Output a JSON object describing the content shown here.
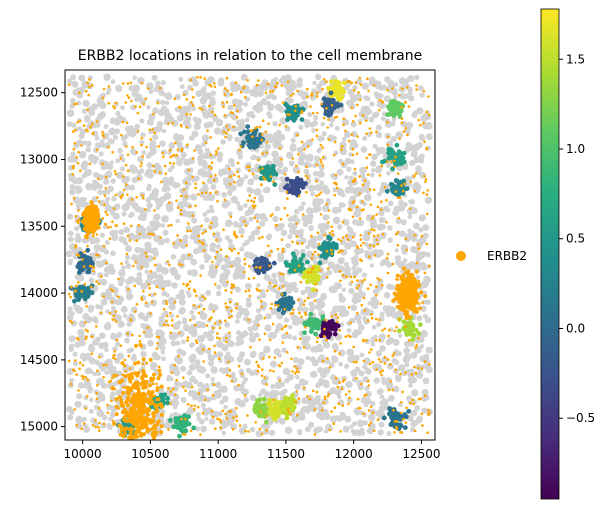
{
  "chart_data": {
    "type": "scatter",
    "title": "ERBB2 locations in relation to the cell membrane",
    "xlabel": "",
    "ylabel": "",
    "xlim": [
      9870,
      12600
    ],
    "ylim": [
      15100,
      12330
    ],
    "y_inverted": true,
    "xticks": [
      10000,
      10500,
      11000,
      11500,
      12000,
      12500
    ],
    "yticks": [
      12500,
      13000,
      13500,
      14000,
      14500,
      15000
    ],
    "colorbar": {
      "colormap": "viridis",
      "range": [
        -0.95,
        1.78
      ],
      "ticks": [
        -0.5,
        0.0,
        0.5,
        1.0,
        1.5
      ],
      "tick_labels": [
        "−0.5",
        "0.0",
        "0.5",
        "1.0",
        "1.5"
      ]
    },
    "legend": {
      "label": "ERBB2",
      "color": "#ffa500",
      "placement": "right"
    },
    "series": [
      {
        "name": "cell membranes",
        "color": "#d3d3d3",
        "extent_x": [
          9900,
          12560
        ],
        "extent_y": [
          12380,
          15060
        ]
      },
      {
        "name": "ERBB2",
        "color": "#ffa500"
      }
    ],
    "highlighted_cells": [
      {
        "x": 11250,
        "y": 12850,
        "v": 0.1
      },
      {
        "x": 11370,
        "y": 13100,
        "v": 0.5
      },
      {
        "x": 11570,
        "y": 13200,
        "v": -0.3
      },
      {
        "x": 11810,
        "y": 13660,
        "v": 0.4
      },
      {
        "x": 11330,
        "y": 13790,
        "v": -0.2
      },
      {
        "x": 11560,
        "y": 13800,
        "v": 0.6
      },
      {
        "x": 11500,
        "y": 14080,
        "v": 0.1
      },
      {
        "x": 11690,
        "y": 13860,
        "v": 1.6
      },
      {
        "x": 11700,
        "y": 14230,
        "v": 0.9
      },
      {
        "x": 11820,
        "y": 14260,
        "v": -0.9
      },
      {
        "x": 11880,
        "y": 12480,
        "v": 1.7
      },
      {
        "x": 11830,
        "y": 12600,
        "v": -0.1
      },
      {
        "x": 12310,
        "y": 12620,
        "v": 1.1
      },
      {
        "x": 12300,
        "y": 12990,
        "v": 0.6
      },
      {
        "x": 12320,
        "y": 13220,
        "v": 0.3
      },
      {
        "x": 10050,
        "y": 13480,
        "v": 0.3
      },
      {
        "x": 10020,
        "y": 13780,
        "v": 0.0
      },
      {
        "x": 10000,
        "y": 13990,
        "v": 0.2
      },
      {
        "x": 11330,
        "y": 14880,
        "v": 1.3
      },
      {
        "x": 11430,
        "y": 14860,
        "v": 1.6
      },
      {
        "x": 11520,
        "y": 14830,
        "v": 1.5
      },
      {
        "x": 10560,
        "y": 14810,
        "v": 0.6
      },
      {
        "x": 10340,
        "y": 15000,
        "v": 0.5
      },
      {
        "x": 10730,
        "y": 14990,
        "v": 0.8
      },
      {
        "x": 12310,
        "y": 14940,
        "v": 0.1
      },
      {
        "x": 11560,
        "y": 12640,
        "v": 0.4
      },
      {
        "x": 12410,
        "y": 14260,
        "v": 1.4
      }
    ],
    "erbb2_clusters": [
      {
        "x": 10060,
        "y": 13450,
        "spread": 40
      },
      {
        "x": 10420,
        "y": 14870,
        "spread": 130
      },
      {
        "x": 12400,
        "y": 14000,
        "spread": 60
      }
    ]
  }
}
